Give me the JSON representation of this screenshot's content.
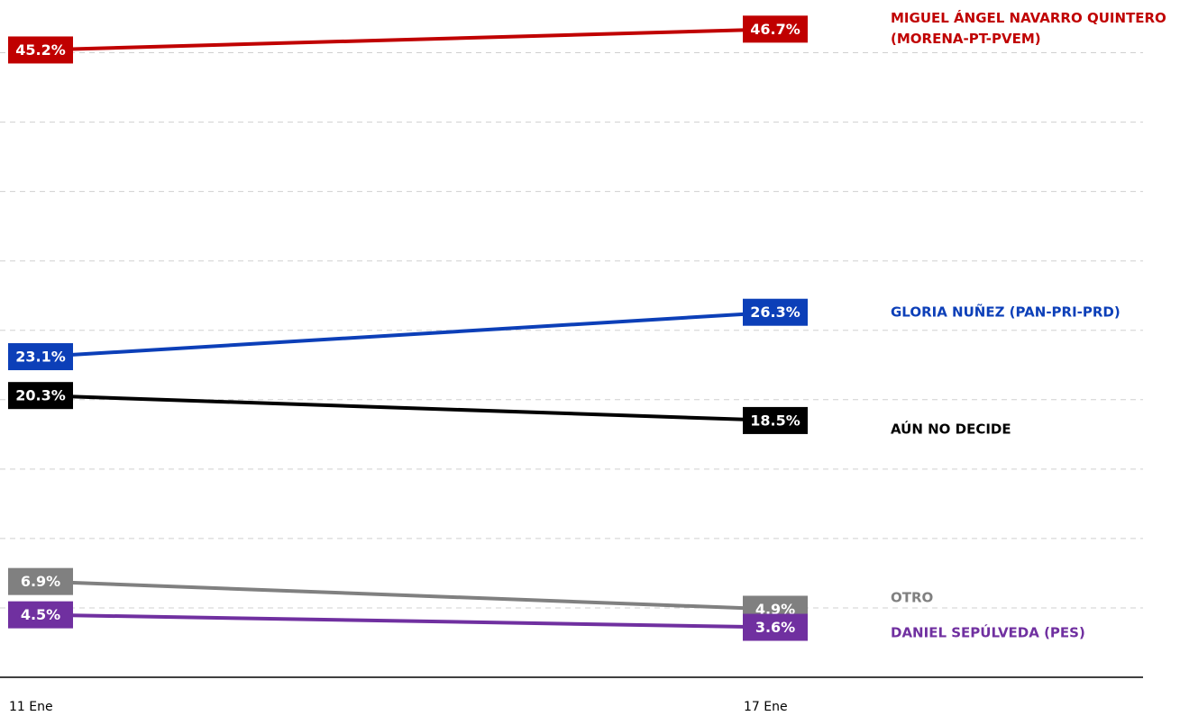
{
  "chart_data": {
    "type": "line",
    "categories": [
      "11 Ene",
      "17 Ene"
    ],
    "ylim": [
      0,
      48.8
    ],
    "yticks": [
      0,
      5,
      10,
      15,
      20,
      25,
      30,
      35,
      40,
      45
    ],
    "grid": true,
    "series": [
      {
        "name": "MIGUEL ÁNGEL NAVARRO QUINTERO (MORENA-PT-PVEM)",
        "color": "#c00000",
        "values": [
          45.2,
          46.7
        ],
        "value_labels": [
          "45.2%",
          "46.7%"
        ]
      },
      {
        "name": "GLORIA NUÑEZ (PAN-PRI-PRD)",
        "color": "#0c3fb8",
        "values": [
          23.1,
          26.3
        ],
        "value_labels": [
          "23.1%",
          "26.3%"
        ]
      },
      {
        "name": "AÚN NO DECIDE",
        "color": "#000000",
        "values": [
          20.3,
          18.5
        ],
        "value_labels": [
          "20.3%",
          "18.5%"
        ]
      },
      {
        "name": "OTRO",
        "color": "#808080",
        "values": [
          6.9,
          4.9
        ],
        "value_labels": [
          "6.9%",
          "4.9%"
        ]
      },
      {
        "name": "DANIEL SEPÚLVEDA (PES)",
        "color": "#7030a0",
        "values": [
          4.5,
          3.6
        ],
        "value_labels": [
          "4.5%",
          "3.6%"
        ]
      }
    ]
  }
}
